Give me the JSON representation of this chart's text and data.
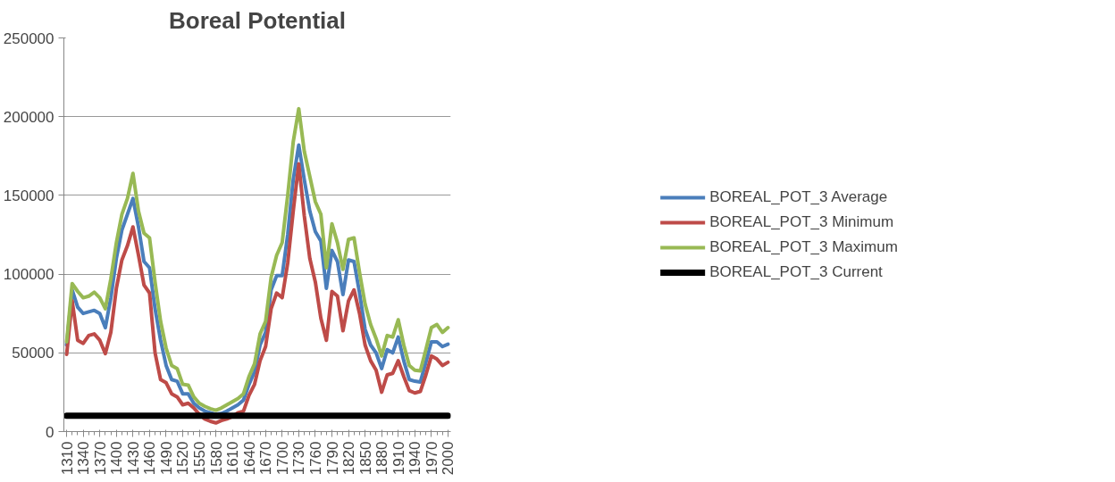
{
  "chart_data": {
    "type": "line",
    "title": "Boreal Potential",
    "categories": [
      "1310",
      null,
      null,
      "1340",
      null,
      null,
      "1370",
      null,
      null,
      "1400",
      null,
      null,
      "1430",
      null,
      null,
      "1460",
      null,
      null,
      "1490",
      null,
      null,
      "1520",
      null,
      null,
      "1550",
      null,
      null,
      "1580",
      null,
      null,
      "1610",
      null,
      null,
      "1640",
      null,
      null,
      "1670",
      null,
      null,
      "1700",
      null,
      null,
      "1730",
      null,
      null,
      "1760",
      null,
      null,
      "1790",
      null,
      null,
      "1820",
      null,
      null,
      "1850",
      null,
      null,
      "1880",
      null,
      null,
      "1910",
      null,
      null,
      "1940",
      null,
      null,
      "1970",
      null,
      null,
      "2000"
    ],
    "series": [
      {
        "name": "BOREAL_POT_3 Average",
        "color": "#4a7ebb",
        "values": [
          55000,
          90000,
          79000,
          75000,
          76000,
          77000,
          75000,
          66000,
          85000,
          110000,
          128000,
          138000,
          148000,
          130000,
          108000,
          104000,
          78000,
          58000,
          42000,
          33000,
          32000,
          24000,
          24000,
          18000,
          15000,
          13000,
          12000,
          11000,
          11500,
          13000,
          15000,
          17000,
          20000,
          30000,
          38000,
          55000,
          63000,
          90000,
          99000,
          99000,
          125000,
          160000,
          182000,
          160000,
          140000,
          127000,
          121000,
          91000,
          115000,
          108000,
          87000,
          109000,
          108000,
          88000,
          65000,
          55000,
          50000,
          40000,
          52000,
          50000,
          60000,
          45000,
          33000,
          32000,
          31500,
          44000,
          57000,
          57000,
          54000,
          55500
        ]
      },
      {
        "name": "BOREAL_POT_3 Minimum",
        "color": "#be4b48",
        "values": [
          49000,
          83000,
          58000,
          56000,
          61000,
          62000,
          58000,
          49500,
          63000,
          91000,
          109000,
          118000,
          130000,
          112000,
          93000,
          88000,
          50000,
          33000,
          31000,
          24000,
          22000,
          17000,
          18000,
          15000,
          11000,
          8000,
          6500,
          5500,
          7000,
          8000,
          9500,
          12000,
          13000,
          23000,
          30000,
          45000,
          54000,
          78000,
          88000,
          85000,
          107000,
          140000,
          170000,
          137000,
          110000,
          95000,
          72000,
          58000,
          89000,
          86000,
          64000,
          83000,
          90000,
          75000,
          55000,
          45000,
          39000,
          25000,
          36000,
          37000,
          45000,
          35000,
          26000,
          24500,
          25500,
          36000,
          48000,
          46000,
          42000,
          44000
        ]
      },
      {
        "name": "BOREAL_POT_3 Maximum",
        "color": "#98b954",
        "values": [
          57000,
          94000,
          89000,
          85000,
          86000,
          88500,
          85000,
          78000,
          97000,
          120000,
          138000,
          148000,
          164000,
          140000,
          126000,
          123000,
          95000,
          70000,
          53000,
          42000,
          40000,
          30000,
          29500,
          22000,
          18000,
          16000,
          14500,
          13500,
          15000,
          17000,
          19000,
          21000,
          24000,
          35000,
          43000,
          62000,
          70000,
          98000,
          112000,
          120000,
          150000,
          184000,
          205000,
          178000,
          162000,
          146000,
          138000,
          104000,
          132000,
          120000,
          103000,
          122000,
          123000,
          101000,
          81000,
          68000,
          59000,
          48000,
          61000,
          60000,
          71000,
          55000,
          42000,
          39000,
          38500,
          52000,
          66000,
          68000,
          63000,
          66000
        ]
      },
      {
        "name": "BOREAL_POT_3 Current",
        "color": "#000000",
        "values": [
          10000,
          10000,
          10000,
          10000,
          10000,
          10000,
          10000,
          10000,
          10000,
          10000,
          10000,
          10000,
          10000,
          10000,
          10000,
          10000,
          10000,
          10000,
          10000,
          10000,
          10000,
          10000,
          10000,
          10000,
          10000,
          10000,
          10000,
          10000,
          10000,
          10000,
          10000,
          10000,
          10000,
          10000,
          10000,
          10000,
          10000,
          10000,
          10000,
          10000,
          10000,
          10000,
          10000,
          10000,
          10000,
          10000,
          10000,
          10000,
          10000,
          10000,
          10000,
          10000,
          10000,
          10000,
          10000,
          10000,
          10000,
          10000,
          10000,
          10000,
          10000,
          10000,
          10000,
          10000,
          10000,
          10000,
          10000,
          10000,
          10000,
          10000
        ]
      }
    ],
    "ylim": [
      0,
      250000
    ],
    "yticks": [
      0,
      50000,
      100000,
      150000,
      200000,
      250000
    ],
    "grid": "y",
    "legend": "right",
    "marker": "none",
    "line_style": "solid"
  }
}
